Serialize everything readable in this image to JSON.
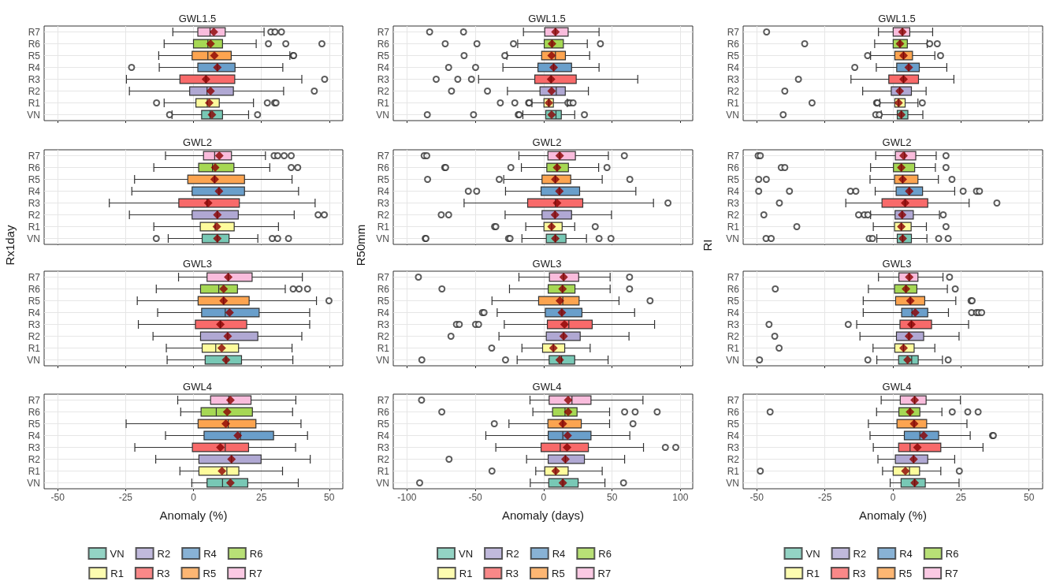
{
  "chart_data": [
    {
      "type": "box",
      "orientation": "horizontal",
      "title": "GWL1.5",
      "categories": [
        "R7",
        "R6",
        "R5",
        "R4",
        "R3",
        "R2",
        "R1",
        "VN"
      ],
      "colors": [
        "#f9bcdc",
        "#a6d854",
        "#fca450",
        "#6a9fcb",
        "#f86a6a",
        "#b0a8d3",
        "#fdfb9c",
        "#78c8b5"
      ],
      "xlim": [
        -55,
        55
      ],
      "xticks": [
        -50,
        -25,
        0,
        25,
        50
      ],
      "grid": true,
      "tick_labels": "y",
      "boxes": [
        {
          "low": -7.6,
          "q1": 1.6,
          "median": 6.1,
          "q3": 11.7,
          "high": 26.0,
          "mean": 7.5,
          "outliers": [
            28.5,
            30.0,
            32.4
          ]
        },
        {
          "low": -10.8,
          "q1": 0,
          "median": 5.3,
          "q3": 10.7,
          "high": 23.1,
          "mean": 6.3,
          "outliers": [
            27.6,
            34.0,
            47.3
          ]
        },
        {
          "low": -12.8,
          "q1": -0.5,
          "median": 5.3,
          "q3": 13.9,
          "high": 35.5,
          "mean": 7.7,
          "outliers": [
            36.7,
            36.9
          ]
        },
        {
          "low": -12.6,
          "q1": 1.6,
          "median": 8.8,
          "q3": 15.3,
          "high": 32.9,
          "mean": 8.8,
          "outliers": [
            -22.8
          ]
        },
        {
          "low": -24.7,
          "q1": -5.0,
          "median": 4.6,
          "q3": 15.2,
          "high": 39.9,
          "mean": 4.6,
          "outliers": [
            48.3
          ]
        },
        {
          "low": -23.6,
          "q1": -1.4,
          "median": 5.0,
          "q3": 14.7,
          "high": 33.2,
          "mean": 6.3,
          "outliers": [
            44.5
          ]
        },
        {
          "low": -10.8,
          "q1": 0.9,
          "median": 5.1,
          "q3": 9.5,
          "high": 22.1,
          "mean": 5.8,
          "outliers": [
            -13.6,
            27.2,
            29.9,
            30.4
          ]
        },
        {
          "low": -7.9,
          "q1": 3.0,
          "median": 6.1,
          "q3": 10.7,
          "high": 20.3,
          "mean": 6.8,
          "outliers": [
            -8.8,
            23.6
          ]
        }
      ]
    },
    {
      "type": "box",
      "orientation": "horizontal",
      "title": "GWL1.5",
      "categories": [
        "R7",
        "R6",
        "R5",
        "R4",
        "R3",
        "R2",
        "R1",
        "VN"
      ],
      "colors": [
        "#f9bcdc",
        "#a6d854",
        "#fca450",
        "#6a9fcb",
        "#f86a6a",
        "#b0a8d3",
        "#fdfb9c",
        "#78c8b5"
      ],
      "xlim": [
        -110,
        109
      ],
      "xticks": [
        -100,
        -50,
        0,
        50,
        100
      ],
      "grid": true,
      "tick_labels": "y",
      "boxes": [
        {
          "low": -14.8,
          "q1": 0.8,
          "median": 8.6,
          "q3": 17.9,
          "high": 40.5,
          "mean": 8.6,
          "outliers": [
            -83.4,
            -58.6
          ]
        },
        {
          "low": -19.0,
          "q1": 0.4,
          "median": 6.1,
          "q3": 14.4,
          "high": 31.9,
          "mean": 6.1,
          "outliers": [
            -72.0,
            -48.8,
            -22.1,
            41.5
          ]
        },
        {
          "low": -26.9,
          "q1": -1.5,
          "median": 8.6,
          "q3": 15.9,
          "high": 33.6,
          "mean": 5.8,
          "outliers": [
            -58.2,
            -28.4
          ]
        },
        {
          "low": -29.8,
          "q1": -4.2,
          "median": 7.3,
          "q3": 20.4,
          "high": 40.5,
          "mean": 7.3,
          "outliers": [
            -69.5,
            -49.8
          ]
        },
        {
          "low": -47.6,
          "q1": -6.5,
          "median": 5.4,
          "q3": 23.8,
          "high": 68.8,
          "mean": 5.4,
          "outliers": [
            -78.6,
            -62.8,
            -52.8
          ]
        },
        {
          "low": -26.5,
          "q1": -2.7,
          "median": 9.2,
          "q3": 15.8,
          "high": 32.7,
          "mean": 5.8,
          "outliers": [
            -67.4,
            -41.1
          ]
        },
        {
          "low": -8.6,
          "q1": 0.2,
          "median": 3.8,
          "q3": 7.1,
          "high": 17.3,
          "mean": 3.8,
          "outliers": [
            -31.7,
            -21.1,
            -11.0,
            -10.6,
            17.7,
            19.2,
            21.5
          ]
        },
        {
          "low": -15.2,
          "q1": 1.5,
          "median": 9.0,
          "q3": 12.9,
          "high": 22.7,
          "mean": 5.8,
          "outliers": [
            -85.1,
            -51.3,
            -18.6,
            -17.9,
            29.8
          ]
        }
      ]
    },
    {
      "type": "box",
      "orientation": "horizontal",
      "title": "GWL1.5",
      "categories": [
        "R7",
        "R6",
        "R5",
        "R4",
        "R3",
        "R2",
        "R1",
        "VN"
      ],
      "colors": [
        "#f9bcdc",
        "#a6d854",
        "#fca450",
        "#6a9fcb",
        "#f86a6a",
        "#b0a8d3",
        "#fdfb9c",
        "#78c8b5"
      ],
      "xlim": [
        -55,
        55
      ],
      "xticks": [
        -50,
        -25,
        0,
        25,
        50
      ],
      "grid": true,
      "tick_labels": "y",
      "boxes": [
        {
          "low": -5.3,
          "q1": 0.1,
          "median": 3.5,
          "q3": 6.2,
          "high": 14.6,
          "mean": 3.5,
          "outliers": [
            -46.4
          ]
        },
        {
          "low": -6.7,
          "q1": 0.1,
          "median": 2.6,
          "q3": 5.3,
          "high": 12.6,
          "mean": 2.6,
          "outliers": [
            -32.4,
            13.5,
            16.3
          ]
        },
        {
          "low": -8.2,
          "q1": 0.7,
          "median": 3.9,
          "q3": 7.2,
          "high": 15.4,
          "mean": 3.9,
          "outliers": [
            -9.3,
            17.5
          ]
        },
        {
          "low": -6.1,
          "q1": 1.4,
          "median": 5.8,
          "q3": 9.7,
          "high": 19.8,
          "mean": 5.8,
          "outliers": [
            -14.0
          ]
        },
        {
          "low": -15.4,
          "q1": -1.5,
          "median": 3.9,
          "q3": 9.4,
          "high": 22.4,
          "mean": 3.9,
          "outliers": [
            -34.7
          ]
        },
        {
          "low": -11.1,
          "q1": -0.6,
          "median": 2.5,
          "q3": 6.8,
          "high": 12.2,
          "mean": 2.5,
          "outliers": [
            -39.7
          ]
        },
        {
          "low": -4.8,
          "q1": 0.7,
          "median": 2.1,
          "q3": 4.5,
          "high": 9.2,
          "mean": 2.1,
          "outliers": [
            -29.7,
            -6.0,
            -5.7,
            10.8
          ]
        },
        {
          "low": -4.3,
          "q1": 1.6,
          "median": 3.1,
          "q3": 5.5,
          "high": 11.0,
          "mean": 3.1,
          "outliers": [
            -40.3,
            -6.3,
            -5.0
          ]
        }
      ]
    },
    {
      "type": "box",
      "orientation": "horizontal",
      "title": "GWL2",
      "ylabel": "Rx1day",
      "categories": [
        "R7",
        "R6",
        "R5",
        "R4",
        "R3",
        "R2",
        "R1",
        "VN"
      ],
      "colors": [
        "#f9bcdc",
        "#a6d854",
        "#fca450",
        "#6a9fcb",
        "#f86a6a",
        "#b0a8d3",
        "#fdfb9c",
        "#78c8b5"
      ],
      "xlim": [
        -55,
        55
      ],
      "xticks": [
        -50,
        -25,
        0,
        25,
        50
      ],
      "grid": true,
      "tick_labels": "y",
      "boxes": [
        {
          "low": -10.3,
          "q1": 3.7,
          "median": 7.8,
          "q3": 14.0,
          "high": 26.5,
          "mean": 9.5,
          "outliers": [
            29.7,
            31.0,
            33.4,
            36.0
          ]
        },
        {
          "low": -14.6,
          "q1": 1.9,
          "median": 7.0,
          "q3": 14.9,
          "high": 28.1,
          "mean": 8.0,
          "outliers": [
            36.0,
            38.4
          ]
        },
        {
          "low": -21.7,
          "q1": -2.1,
          "median": 7.8,
          "q3": 18.8,
          "high": 36.3,
          "mean": 7.8
        },
        {
          "low": -22.7,
          "q1": -0.5,
          "median": 9.4,
          "q3": 18.8,
          "high": 38.7,
          "mean": 9.4
        },
        {
          "low": -31.0,
          "q1": -5.4,
          "median": 5.0,
          "q3": 16.9,
          "high": 44.8,
          "mean": 5.4
        },
        {
          "low": -23.6,
          "q1": -0.5,
          "median": 8.8,
          "q3": 16.5,
          "high": 37.1,
          "mean": 8.8,
          "outliers": [
            45.9,
            48.2
          ]
        },
        {
          "low": -14.6,
          "q1": 2.5,
          "median": 8.0,
          "q3": 15.0,
          "high": 31.3,
          "mean": 8.6
        },
        {
          "low": -9.3,
          "q1": 3.2,
          "median": 8.8,
          "q3": 13.1,
          "high": 23.7,
          "mean": 8.8,
          "outliers": [
            -13.7,
            29.0,
            31.0,
            35.0
          ]
        }
      ]
    },
    {
      "type": "box",
      "orientation": "horizontal",
      "title": "GWL2",
      "ylabel": "R50mm",
      "categories": [
        "R7",
        "R6",
        "R5",
        "R4",
        "R3",
        "R2",
        "R1",
        "VN"
      ],
      "colors": [
        "#f9bcdc",
        "#a6d854",
        "#fca450",
        "#6a9fcb",
        "#f86a6a",
        "#b0a8d3",
        "#fdfb9c",
        "#78c8b5"
      ],
      "xlim": [
        -110,
        109
      ],
      "xticks": [
        -100,
        -50,
        0,
        50,
        100
      ],
      "grid": true,
      "tick_labels": "y",
      "boxes": [
        {
          "low": -18.1,
          "q1": 3.1,
          "median": 11.7,
          "q3": 23.2,
          "high": 47.3,
          "mean": 11.7,
          "outliers": [
            -87.4,
            -85.5,
            59.0
          ]
        },
        {
          "low": -16.3,
          "q1": 2.3,
          "median": 9.8,
          "q3": 18.1,
          "high": 40.2,
          "mean": 9.8,
          "outliers": [
            -72.4,
            -71.7,
            -24.0,
            46.3
          ]
        },
        {
          "low": -29.2,
          "q1": -1.2,
          "median": 8.5,
          "q3": 19.8,
          "high": 42.8,
          "mean": 8.5,
          "outliers": [
            -84.9,
            -32.5,
            63.0
          ]
        },
        {
          "low": -27.9,
          "q1": -1.9,
          "median": 11.5,
          "q3": 26.3,
          "high": 67.4,
          "mean": 11.5,
          "outliers": [
            -55.1,
            -49.0
          ]
        },
        {
          "low": -58.2,
          "q1": -11.7,
          "median": 8.6,
          "q3": 28.6,
          "high": 80.3,
          "mean": 9.8,
          "outliers": [
            90.9
          ]
        },
        {
          "low": -28.2,
          "q1": -1.2,
          "median": 8.3,
          "q3": 20.4,
          "high": 49.6,
          "mean": 8.3,
          "outliers": [
            -74.9,
            -69.5
          ]
        },
        {
          "low": -13.1,
          "q1": 0.2,
          "median": 5.8,
          "q3": 13.5,
          "high": 22.7,
          "mean": 5.8,
          "outliers": [
            -35.9,
            -35.0,
            37.7
          ]
        },
        {
          "low": -15.9,
          "q1": 1.9,
          "median": 8.5,
          "q3": 16.3,
          "high": 31.3,
          "mean": 8.5,
          "outliers": [
            -86.6,
            -86.1,
            -25.7,
            -24.6,
            40.5,
            49.2
          ]
        }
      ]
    },
    {
      "type": "box",
      "orientation": "horizontal",
      "title": "GWL2",
      "ylabel": "RI",
      "categories": [
        "R7",
        "R6",
        "R5",
        "R4",
        "R3",
        "R2",
        "R1",
        "VN"
      ],
      "colors": [
        "#f9bcdc",
        "#a6d854",
        "#fca450",
        "#6a9fcb",
        "#f86a6a",
        "#b0a8d3",
        "#fdfb9c",
        "#78c8b5"
      ],
      "xlim": [
        -55,
        55
      ],
      "xticks": [
        -50,
        -25,
        0,
        25,
        50
      ],
      "grid": true,
      "tick_labels": "y",
      "boxes": [
        {
          "low": -6.3,
          "q1": 0.9,
          "median": 4.3,
          "q3": 8.4,
          "high": 15.9,
          "mean": 3.9,
          "outliers": [
            -49.5,
            -48.7,
            19.5
          ]
        },
        {
          "low": -8.2,
          "q1": 0.2,
          "median": 3.1,
          "q3": 8.0,
          "high": 15.6,
          "mean": 3.1,
          "outliers": [
            -41.0,
            -39.7,
            19.5
          ]
        },
        {
          "low": -8.4,
          "q1": 0.6,
          "median": 3.6,
          "q3": 9.2,
          "high": 16.7,
          "mean": 3.6,
          "outliers": [
            -49.3,
            -46.5,
            21.7
          ]
        },
        {
          "low": -6.5,
          "q1": 1.2,
          "median": 6.0,
          "q3": 10.9,
          "high": 22.7,
          "mean": 6.0,
          "outliers": [
            -49.3,
            -38.0,
            -15.6,
            -13.6,
            25.8,
            30.7,
            31.8
          ]
        },
        {
          "low": -17.3,
          "q1": -4.0,
          "median": 4.5,
          "q3": 12.8,
          "high": 28.0,
          "mean": 4.5,
          "outliers": [
            -41.7,
            38.2
          ]
        },
        {
          "low": -8.2,
          "q1": 0.8,
          "median": 3.4,
          "q3": 7.5,
          "high": 17.1,
          "mean": 3.4,
          "outliers": [
            -47.4,
            -12.6,
            -10.5,
            -9.2,
            18.5
          ]
        },
        {
          "low": -7.2,
          "q1": 0.6,
          "median": 3.1,
          "q3": 6.7,
          "high": 12.3,
          "mean": 3.1,
          "outliers": [
            -35.3,
            19.5
          ]
        },
        {
          "low": -5.9,
          "q1": 1.6,
          "median": 3.6,
          "q3": 6.8,
          "high": 12.5,
          "mean": 3.6,
          "outliers": [
            -46.6,
            -44.7,
            -8.7,
            -7.5,
            16.8,
            20.3
          ]
        }
      ]
    },
    {
      "type": "box",
      "orientation": "horizontal",
      "title": "GWL3",
      "categories": [
        "R7",
        "R6",
        "R5",
        "R4",
        "R3",
        "R2",
        "R1",
        "VN"
      ],
      "colors": [
        "#f9bcdc",
        "#a6d854",
        "#fca450",
        "#6a9fcb",
        "#f86a6a",
        "#b0a8d3",
        "#fdfb9c",
        "#78c8b5"
      ],
      "xlim": [
        -55,
        55
      ],
      "xticks": [
        -50,
        -25,
        0,
        25,
        50
      ],
      "grid": true,
      "tick_labels": "y",
      "boxes": [
        {
          "low": -5.5,
          "q1": 5.0,
          "median": 12.8,
          "q3": 21.6,
          "high": 40.1,
          "mean": 12.8
        },
        {
          "low": -13.7,
          "q1": 2.6,
          "median": 9.3,
          "q3": 16.2,
          "high": 33.8,
          "mean": 11.1,
          "outliers": [
            36.7,
            38.9,
            42.0
          ]
        },
        {
          "low": -20.7,
          "q1": 1.7,
          "median": 11.1,
          "q3": 20.5,
          "high": 45.3,
          "mean": 11.1,
          "outliers": [
            49.9
          ]
        },
        {
          "low": -13.2,
          "q1": 3.0,
          "median": 11.7,
          "q3": 24.2,
          "high": 42.8,
          "mean": 13.3
        },
        {
          "low": -20.3,
          "q1": 0.7,
          "median": 9.9,
          "q3": 19.6,
          "high": 42.8,
          "mean": 9.9
        },
        {
          "low": -14.9,
          "q1": 2.6,
          "median": 12.6,
          "q3": 23.7,
          "high": 39.9,
          "mean": 12.6
        },
        {
          "low": -10.0,
          "q1": 3.2,
          "median": 8.2,
          "q3": 16.6,
          "high": 36.3,
          "mean": 10.4
        },
        {
          "low": -9.7,
          "q1": 4.3,
          "median": 12.0,
          "q3": 17.7,
          "high": 36.6,
          "mean": 12.0
        }
      ]
    },
    {
      "type": "box",
      "orientation": "horizontal",
      "title": "GWL3",
      "categories": [
        "R7",
        "R6",
        "R5",
        "R4",
        "R3",
        "R2",
        "R1",
        "VN"
      ],
      "colors": [
        "#f9bcdc",
        "#a6d854",
        "#fca450",
        "#6a9fcb",
        "#f86a6a",
        "#b0a8d3",
        "#fdfb9c",
        "#78c8b5"
      ],
      "xlim": [
        -110,
        109
      ],
      "xticks": [
        -100,
        -50,
        0,
        50,
        100
      ],
      "grid": true,
      "tick_labels": "y",
      "boxes": [
        {
          "low": -18.1,
          "q1": 4.2,
          "median": 14.6,
          "q3": 25.6,
          "high": 48.6,
          "mean": 14.6,
          "outliers": [
            -91.6,
            62.8
          ]
        },
        {
          "low": -25.0,
          "q1": 3.3,
          "median": 13.8,
          "q3": 22.9,
          "high": 48.6,
          "mean": 13.8,
          "outliers": [
            -74.4,
            62.8
          ]
        },
        {
          "low": -37.8,
          "q1": -3.7,
          "median": 14.0,
          "q3": 25.9,
          "high": 55.1,
          "mean": 11.9,
          "outliers": [
            77.8
          ]
        },
        {
          "low": -34.0,
          "q1": 1.2,
          "median": 13.3,
          "q3": 28.0,
          "high": 66.5,
          "mean": 13.3,
          "outliers": [
            -44.8,
            -43.6
          ]
        },
        {
          "low": -28.8,
          "q1": 2.7,
          "median": 18.4,
          "q3": 35.5,
          "high": 81.1,
          "mean": 15.2,
          "outliers": [
            -63.8,
            -61.7,
            -49.8,
            -47.6
          ]
        },
        {
          "low": -32.7,
          "q1": 1.9,
          "median": 14.6,
          "q3": 26.7,
          "high": 62.4,
          "mean": 14.6,
          "outliers": [
            -67.8
          ]
        },
        {
          "low": -15.9,
          "q1": -0.8,
          "median": 7.1,
          "q3": 15.4,
          "high": 34.0,
          "mean": 7.1,
          "outliers": [
            -38.0
          ]
        },
        {
          "low": -19.4,
          "q1": 4.0,
          "median": 13.1,
          "q3": 22.7,
          "high": 47.1,
          "mean": 11.7,
          "outliers": [
            -89.1,
            -27.9
          ]
        }
      ]
    },
    {
      "type": "box",
      "orientation": "horizontal",
      "title": "GWL3",
      "categories": [
        "R7",
        "R6",
        "R5",
        "R4",
        "R3",
        "R2",
        "R1",
        "VN"
      ],
      "colors": [
        "#f9bcdc",
        "#a6d854",
        "#fca450",
        "#6a9fcb",
        "#f86a6a",
        "#b0a8d3",
        "#fdfb9c",
        "#78c8b5"
      ],
      "xlim": [
        -55,
        55
      ],
      "xticks": [
        -50,
        -25,
        0,
        25,
        50
      ],
      "grid": true,
      "tick_labels": "y",
      "boxes": [
        {
          "low": -5.3,
          "q1": 2.2,
          "median": 6.0,
          "q3": 9.2,
          "high": 18.4,
          "mean": 6.0,
          "outliers": [
            20.8
          ]
        },
        {
          "low": -9.0,
          "q1": 0.6,
          "median": 4.8,
          "q3": 8.8,
          "high": 20.0,
          "mean": 4.8,
          "outliers": [
            -43.2,
            22.9
          ]
        },
        {
          "low": -10.9,
          "q1": 1.0,
          "median": 6.4,
          "q3": 11.7,
          "high": 23.1,
          "mean": 6.4,
          "outliers": [
            28.7,
            29.1
          ]
        },
        {
          "low": -10.9,
          "q1": 3.2,
          "median": 7.0,
          "q3": 12.8,
          "high": 20.4,
          "mean": 8.2,
          "outliers": [
            28.9,
            30.7,
            31.5,
            32.6
          ]
        },
        {
          "low": -13.3,
          "q1": 2.6,
          "median": 6.8,
          "q3": 14.2,
          "high": 27.8,
          "mean": 6.8,
          "outliers": [
            -45.5,
            -16.4
          ]
        },
        {
          "low": -12.1,
          "q1": 1.3,
          "median": 5.9,
          "q3": 11.3,
          "high": 24.3,
          "mean": 5.9,
          "outliers": [
            -43.4
          ]
        },
        {
          "low": -7.3,
          "q1": 0.7,
          "median": 3.9,
          "q3": 7.8,
          "high": 15.4,
          "mean": 3.9,
          "outliers": [
            -41.8
          ]
        },
        {
          "low": -5.9,
          "q1": 2.1,
          "median": 6.9,
          "q3": 9.3,
          "high": 18.2,
          "mean": 5.4,
          "outliers": [
            -49.0,
            -9.2,
            20.3
          ]
        }
      ]
    },
    {
      "type": "box",
      "orientation": "horizontal",
      "title": "GWL4",
      "xlabel": "Anomaly (%)",
      "legend": "bottom",
      "categories": [
        "R7",
        "R6",
        "R5",
        "R4",
        "R3",
        "R2",
        "R1",
        "VN"
      ],
      "xlim": [
        -55,
        55
      ],
      "xticks": [
        -50,
        -25,
        0,
        25,
        50
      ],
      "grid": true,
      "series": [
        {
          "name": "VN",
          "color": "#78c8b5",
          "boxes": [
            null,
            null,
            null,
            null,
            null,
            null,
            null,
            {
              "low": -0.6,
              "q1": 5.0,
              "median": 10.7,
              "q3": 20.0,
              "high": 38.6,
              "mean": 13.6
            }
          ]
        },
        {
          "name": "R1",
          "color": "#fdfb9c",
          "boxes": [
            null,
            null,
            null,
            null,
            null,
            null,
            {
              "low": -5.0,
              "q1": 2.0,
              "median": 12.3,
              "q3": 16.7,
              "high": 32.8,
              "mean": 10.5
            },
            null
          ]
        },
        {
          "name": "R2",
          "color": "#b0a8d3",
          "boxes": [
            null,
            null,
            null,
            null,
            null,
            {
              "low": -13.9,
              "q1": 2.0,
              "median": 14.0,
              "q3": 24.9,
              "high": 43.0,
              "mean": 14.0
            },
            null,
            null
          ]
        },
        {
          "name": "R3",
          "color": "#f86a6a",
          "boxes": [
            null,
            null,
            null,
            null,
            {
              "low": -21.6,
              "q1": -0.4,
              "median": 11.7,
              "q3": 20.3,
              "high": 37.6,
              "mean": 9.9
            },
            null,
            null,
            null
          ]
        },
        {
          "name": "R4",
          "color": "#6a9fcb",
          "boxes": [
            null,
            null,
            null,
            {
              "low": -10.3,
              "q1": 3.9,
              "median": 17.3,
              "q3": 29.5,
              "high": 42.0,
              "mean": 16.3
            },
            null,
            null,
            null,
            null
          ]
        },
        {
          "name": "R5",
          "color": "#fca450",
          "boxes": [
            null,
            null,
            {
              "low": -24.8,
              "q1": 1.7,
              "median": 12.8,
              "q3": 23.0,
              "high": 39.6,
              "mean": 11.9
            },
            null,
            null,
            null,
            null,
            null
          ]
        },
        {
          "name": "R6",
          "color": "#a6d854",
          "boxes": [
            null,
            {
              "low": -4.7,
              "q1": 2.8,
              "median": 8.4,
              "q3": 21.7,
              "high": 36.5,
              "mean": 12.4
            },
            null,
            null,
            null,
            null,
            null,
            null
          ]
        },
        {
          "name": "R7",
          "color": "#f9bcdc",
          "boxes": [
            {
              "low": -5.8,
              "q1": 6.3,
              "median": 13.0,
              "q3": 21.2,
              "high": 37.7,
              "mean": 13.6
            },
            null,
            null,
            null,
            null,
            null,
            null,
            null
          ]
        }
      ]
    },
    {
      "type": "box",
      "orientation": "horizontal",
      "title": "GWL4",
      "xlabel": "Anomaly (days)",
      "legend": "bottom",
      "categories": [
        "R7",
        "R6",
        "R5",
        "R4",
        "R3",
        "R2",
        "R1",
        "VN"
      ],
      "xlim": [
        -110,
        109
      ],
      "xticks": [
        -100,
        -50,
        0,
        50,
        100
      ],
      "grid": true,
      "series": [
        {
          "name": "VN",
          "color": "#78c8b5",
          "boxes": [
            null,
            null,
            null,
            null,
            null,
            null,
            null,
            {
              "low": -9.8,
              "q1": 3.7,
              "median": 14.0,
              "q3": 25.2,
              "high": 44.8,
              "mean": 14.0,
              "outliers": [
                -90.7,
                58.4
              ]
            }
          ]
        },
        {
          "name": "R1",
          "color": "#fdfb9c",
          "boxes": [
            null,
            null,
            null,
            null,
            null,
            null,
            {
              "low": -5.8,
              "q1": 0.8,
              "median": 8.8,
              "q3": 17.9,
              "high": 42.8,
              "mean": 8.8,
              "outliers": [
                -37.8
              ]
            },
            null
          ]
        },
        {
          "name": "R2",
          "color": "#b0a8d3",
          "boxes": [
            null,
            null,
            null,
            null,
            null,
            {
              "low": -12.5,
              "q1": 3.3,
              "median": 15.9,
              "q3": 29.8,
              "high": 59.2,
              "mean": 15.9,
              "outliers": [
                -69.2
              ]
            },
            null,
            null
          ]
        },
        {
          "name": "R3",
          "color": "#f86a6a",
          "boxes": [
            null,
            null,
            null,
            null,
            {
              "low": -35.0,
              "q1": -1.9,
              "median": 12.1,
              "q3": 32.7,
              "high": 73.0,
              "mean": 17.1,
              "outliers": [
                89.0,
                96.6
              ]
            },
            null,
            null,
            null
          ]
        },
        {
          "name": "R4",
          "color": "#6a9fcb",
          "boxes": [
            null,
            null,
            null,
            {
              "low": -42.3,
              "q1": 3.3,
              "median": 14.0,
              "q3": 34.6,
              "high": 63.0,
              "mean": 17.5
            },
            null,
            null,
            null,
            null
          ]
        },
        {
          "name": "R5",
          "color": "#fca450",
          "boxes": [
            null,
            null,
            {
              "low": -25.4,
              "q1": 3.1,
              "median": 14.0,
              "q3": 27.5,
              "high": 48.2,
              "mean": 14.0,
              "outliers": [
                -36.1,
                65.3
              ]
            },
            null,
            null,
            null,
            null,
            null
          ]
        },
        {
          "name": "R6",
          "color": "#a6d854",
          "boxes": [
            null,
            {
              "low": -7.9,
              "q1": 6.5,
              "median": 15.6,
              "q3": 24.4,
              "high": 48.2,
              "mean": 17.9,
              "outliers": [
                -74.5,
                59.2,
                66.9,
                83.0
              ]
            },
            null,
            null,
            null,
            null,
            null,
            null
          ]
        },
        {
          "name": "R7",
          "color": "#f9bcdc",
          "boxes": [
            {
              "low": -10.0,
              "q1": 4.0,
              "median": 20.7,
              "q3": 34.6,
              "high": 72.6,
              "mean": 17.9,
              "outliers": [
                -89.3
              ]
            },
            null,
            null,
            null,
            null,
            null,
            null,
            null
          ]
        }
      ]
    },
    {
      "type": "box",
      "orientation": "horizontal",
      "title": "GWL4",
      "xlabel": "Anomaly (%)",
      "legend": "bottom",
      "categories": [
        "R7",
        "R6",
        "R5",
        "R4",
        "R3",
        "R2",
        "R1",
        "VN"
      ],
      "xlim": [
        -55,
        55
      ],
      "xticks": [
        -50,
        -25,
        0,
        25,
        50
      ],
      "grid": true,
      "series": [
        {
          "name": "VN",
          "color": "#78c8b5",
          "boxes": [
            null,
            null,
            null,
            null,
            null,
            null,
            null,
            {
              "low": -1.0,
              "q1": 3.0,
              "median": 8.0,
              "q3": 11.9,
              "high": 24.3,
              "mean": 8.0
            }
          ]
        },
        {
          "name": "R1",
          "color": "#fdfb9c",
          "boxes": [
            null,
            null,
            null,
            null,
            null,
            null,
            {
              "low": -3.8,
              "q1": 0.1,
              "median": 6.1,
              "q3": 9.8,
              "high": 17.6,
              "mean": 4.6,
              "outliers": [
                -48.7,
                24.4
              ]
            },
            null
          ]
        },
        {
          "name": "R2",
          "color": "#b0a8d3",
          "boxes": [
            null,
            null,
            null,
            null,
            null,
            {
              "low": -5.5,
              "q1": 0.9,
              "median": 7.6,
              "q3": 12.8,
              "high": 22.7,
              "mean": 7.6
            },
            null,
            null
          ]
        },
        {
          "name": "R3",
          "color": "#f86a6a",
          "boxes": [
            null,
            null,
            null,
            null,
            {
              "low": -7.2,
              "q1": 2.1,
              "median": 6.3,
              "q3": 17.6,
              "high": 33.1,
              "mean": 9.0
            },
            null,
            null,
            null
          ]
        },
        {
          "name": "R4",
          "color": "#6a9fcb",
          "boxes": [
            null,
            null,
            null,
            {
              "low": -8.4,
              "q1": 4.2,
              "median": 9.9,
              "q3": 16.8,
              "high": 28.4,
              "mean": 11.3,
              "outliers": [
                36.6,
                36.9
              ]
            },
            null,
            null,
            null,
            null
          ]
        },
        {
          "name": "R5",
          "color": "#fca450",
          "boxes": [
            null,
            null,
            {
              "low": -9.0,
              "q1": 1.5,
              "median": 7.8,
              "q3": 12.4,
              "high": 27.2,
              "mean": 7.8
            },
            null,
            null,
            null,
            null,
            null
          ]
        },
        {
          "name": "R6",
          "color": "#a6d854",
          "boxes": [
            null,
            {
              "low": -6.0,
              "q1": 2.2,
              "median": 6.3,
              "q3": 9.9,
              "high": 18.0,
              "mean": 6.3,
              "outliers": [
                -45.1,
                21.8,
                27.5,
                31.3
              ]
            },
            null,
            null,
            null,
            null,
            null,
            null
          ]
        },
        {
          "name": "R7",
          "color": "#f9bcdc",
          "boxes": [
            {
              "low": -4.3,
              "q1": 2.7,
              "median": 8.0,
              "q3": 12.2,
              "high": 24.8,
              "mean": 8.0
            },
            null,
            null,
            null,
            null,
            null,
            null,
            null
          ]
        }
      ]
    }
  ]
}
